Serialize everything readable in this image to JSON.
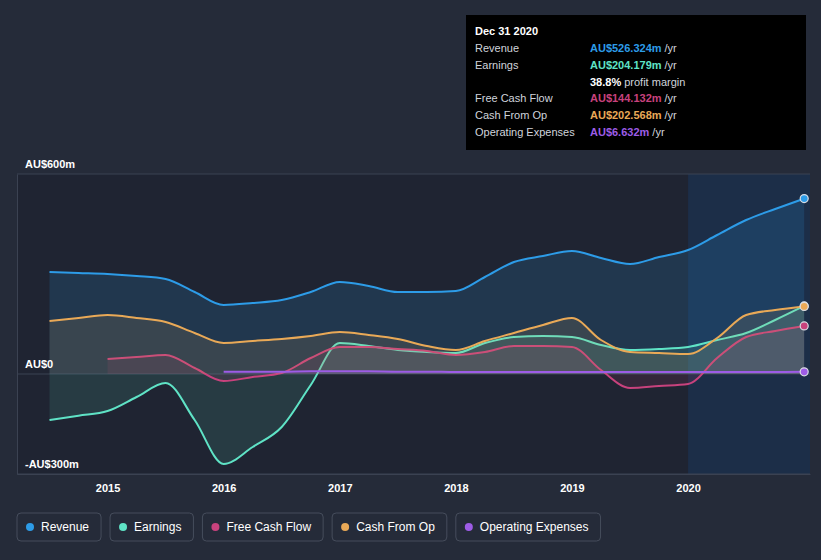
{
  "chart_data": {
    "type": "line",
    "x": [
      2014.5,
      2014.75,
      2015,
      2015.25,
      2015.5,
      2015.75,
      2016,
      2016.25,
      2016.5,
      2016.75,
      2017,
      2017.25,
      2017.5,
      2017.75,
      2018,
      2018.25,
      2018.5,
      2018.75,
      2019,
      2019.25,
      2019.5,
      2019.75,
      2020,
      2020.25,
      2020.5,
      2020.75,
      2021
    ],
    "xlim": [
      2014.22,
      2021.05
    ],
    "xticks": [
      2015,
      2016,
      2017,
      2018,
      2019,
      2020
    ],
    "ylim": [
      -300,
      600
    ],
    "yticks": [
      {
        "value": -300,
        "label": "-AU$300m"
      },
      {
        "value": 0,
        "label": "AU$0"
      },
      {
        "value": 600,
        "label": "AU$600m"
      }
    ],
    "grid": true,
    "legend": "bottom",
    "series": [
      {
        "name": "Revenue",
        "color": "#2d9ce8",
        "values": [
          306,
          303,
          300,
          294,
          285,
          246,
          207,
          213,
          222,
          246,
          276,
          264,
          246,
          246,
          249,
          291,
          336,
          354,
          369,
          348,
          330,
          351,
          372,
          417,
          462,
          495,
          526.3
        ]
      },
      {
        "name": "Earnings",
        "color": "#5fe3c6",
        "values": [
          -138,
          -125,
          -111,
          -69,
          -27,
          -138,
          -270,
          -219,
          -159,
          -33,
          93,
          84,
          72,
          66,
          63,
          93,
          111,
          114,
          111,
          87,
          72,
          75,
          81,
          102,
          123,
          162,
          204.2
        ]
      },
      {
        "name": "Free Cash Flow",
        "color": "#c8427d",
        "values": [
          null,
          null,
          45,
          51,
          57,
          18,
          -21,
          -9,
          3,
          48,
          81,
          81,
          75,
          69,
          57,
          66,
          84,
          84,
          81,
          12,
          -42,
          -36,
          -30,
          48,
          111,
          129,
          144.1
        ]
      },
      {
        "name": "Cash From Op",
        "color": "#e9a957",
        "values": [
          159,
          168,
          177,
          168,
          156,
          123,
          93,
          99,
          105,
          114,
          126,
          117,
          105,
          84,
          72,
          99,
          123,
          147,
          168,
          102,
          66,
          63,
          60,
          108,
          177,
          192,
          202.6
        ]
      },
      {
        "name": "Operating Expenses",
        "color": "#9d5ce6",
        "values": [
          null,
          null,
          null,
          null,
          null,
          null,
          7,
          7,
          7,
          8,
          8,
          8,
          7,
          7,
          6,
          6,
          6,
          6,
          6,
          6,
          6,
          6,
          6,
          6,
          6,
          6,
          6.6
        ]
      }
    ],
    "tooltip": {
      "title": "Dec 31 2020",
      "rows": [
        {
          "label": "Revenue",
          "value": "AU$526.324m",
          "unit": "/yr",
          "color": "#2d9ce8"
        },
        {
          "label": "Earnings",
          "value": "AU$204.179m",
          "unit": "/yr",
          "color": "#5fe3c6"
        },
        {
          "value": "38.8%",
          "label": "profit margin"
        },
        {
          "label": "Free Cash Flow",
          "value": "AU$144.132m",
          "unit": "/yr",
          "color": "#c8427d"
        },
        {
          "label": "Cash From Op",
          "value": "AU$202.568m",
          "unit": "/yr",
          "color": "#e9a957"
        },
        {
          "label": "Operating Expenses",
          "value": "AU$6.632m",
          "unit": "/yr",
          "color": "#9d5ce6"
        }
      ]
    }
  }
}
